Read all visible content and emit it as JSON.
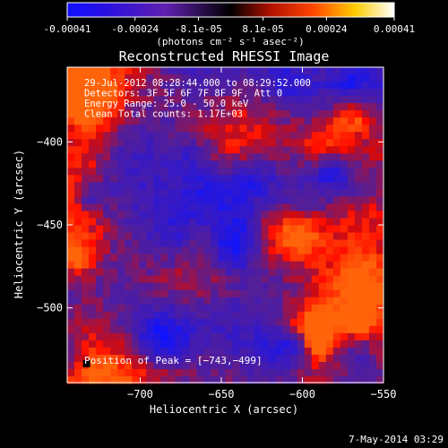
{
  "colorbar": {
    "tick_labels": [
      "-0.00041",
      "-0.00024",
      "-8.1e-05",
      "8.1e-05",
      "0.00024",
      "0.00041"
    ],
    "tick_values": [
      -0.00041,
      -0.00024,
      -8.1e-05,
      8.1e-05,
      0.00024,
      0.00041
    ],
    "range": [
      -0.00041,
      0.00041
    ],
    "units": "(photons cm⁻² s⁻¹ asec⁻²)"
  },
  "chart_data": {
    "type": "heatmap",
    "title": "Reconstructed RHESSI Image",
    "xlabel": "Heliocentric X (arcsec)",
    "ylabel": "Heliocentric Y (arcsec)",
    "xlim": [
      -745,
      -550
    ],
    "ylim": [
      -545,
      -355
    ],
    "x_ticks": [
      {
        "value": -700,
        "label": "−700"
      },
      {
        "value": -650,
        "label": "−650"
      },
      {
        "value": -600,
        "label": "−600"
      },
      {
        "value": -550,
        "label": "−550"
      }
    ],
    "y_ticks": [
      {
        "value": -400,
        "label": "−400"
      },
      {
        "value": -450,
        "label": "−450"
      },
      {
        "value": -500,
        "label": "−500"
      }
    ],
    "annotations": [
      "29-Jul-2012 08:28:44.000 to 08:29:52.000",
      "Detectors: 3F 5F 6F 7F 8F 9F, Att 0",
      "Energy Range: 25.0 - 50.0 keV",
      "Clean     Total counts: 1.17E+03"
    ],
    "peak_label": "Position of Peak = [−743,−499]",
    "peak": {
      "x": -743,
      "y": -499
    }
  },
  "footer": {
    "date": "7-May-2014 03:29"
  },
  "colors": {
    "background": "#000000",
    "text": "#ffffff"
  }
}
